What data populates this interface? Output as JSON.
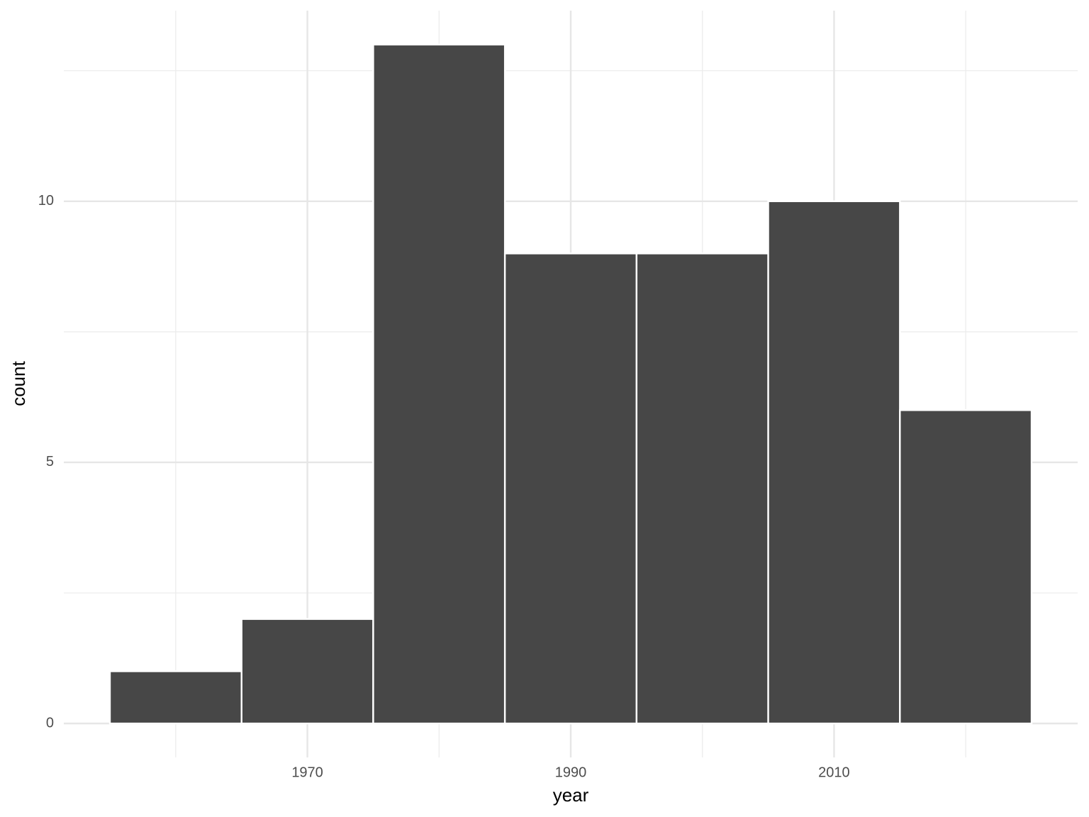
{
  "chart_data": {
    "type": "histogram",
    "x_label": "year",
    "y_label": "count",
    "bins": [
      1955,
      1965,
      1975,
      1985,
      1995,
      2005,
      2015,
      2025
    ],
    "counts": [
      1,
      2,
      13,
      9,
      9,
      10,
      6
    ],
    "color": "#474747",
    "edge_color": "#ffffff",
    "xlim": [
      1951.5,
      2028.5
    ],
    "xticks": [
      1970,
      1990,
      2010
    ],
    "xminor_ticks": [
      1960,
      1980,
      2000,
      2020
    ],
    "ylim": [
      -0.65,
      13.65
    ],
    "yticks": [
      0,
      5,
      10
    ],
    "yminor_ticks": [
      2.5,
      7.5,
      12.5
    ],
    "grid": true
  }
}
